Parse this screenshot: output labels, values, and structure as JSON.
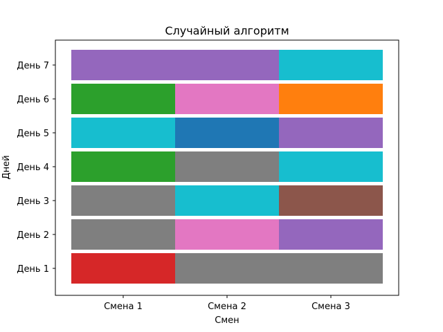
{
  "chart_data": {
    "type": "bar",
    "orientation": "horizontal",
    "stacked": true,
    "title": "Случайный алгоритм",
    "xlabel": "Смен",
    "ylabel": "Дней",
    "categories": [
      "День 1",
      "День 2",
      "День 3",
      "День 4",
      "День 5",
      "День 6",
      "День 7"
    ],
    "x_ticks": [
      "Смена 1",
      "Смена 2",
      "Смена 3"
    ],
    "xlim": [
      0,
      3
    ],
    "grid": false,
    "legend": "none",
    "rows": [
      {
        "day": "День 1",
        "segments": [
          {
            "start": 0,
            "end": 1,
            "color": "#d62728"
          },
          {
            "start": 1,
            "end": 3,
            "color": "#7f7f7f"
          }
        ]
      },
      {
        "day": "День 2",
        "segments": [
          {
            "start": 0,
            "end": 1,
            "color": "#7f7f7f"
          },
          {
            "start": 1,
            "end": 2,
            "color": "#e377c2"
          },
          {
            "start": 2,
            "end": 3,
            "color": "#9467bd"
          }
        ]
      },
      {
        "day": "День 3",
        "segments": [
          {
            "start": 0,
            "end": 1,
            "color": "#7f7f7f"
          },
          {
            "start": 1,
            "end": 2,
            "color": "#17becf"
          },
          {
            "start": 2,
            "end": 3,
            "color": "#8c564b"
          }
        ]
      },
      {
        "day": "День 4",
        "segments": [
          {
            "start": 0,
            "end": 1,
            "color": "#2ca02c"
          },
          {
            "start": 1,
            "end": 2,
            "color": "#7f7f7f"
          },
          {
            "start": 2,
            "end": 3,
            "color": "#17becf"
          }
        ]
      },
      {
        "day": "День 5",
        "segments": [
          {
            "start": 0,
            "end": 1,
            "color": "#17becf"
          },
          {
            "start": 1,
            "end": 2,
            "color": "#1f77b4"
          },
          {
            "start": 2,
            "end": 3,
            "color": "#9467bd"
          }
        ]
      },
      {
        "day": "День 6",
        "segments": [
          {
            "start": 0,
            "end": 1,
            "color": "#2ca02c"
          },
          {
            "start": 1,
            "end": 2,
            "color": "#e377c2"
          },
          {
            "start": 2,
            "end": 3,
            "color": "#ff7f0e"
          }
        ]
      },
      {
        "day": "День 7",
        "segments": [
          {
            "start": 0,
            "end": 2,
            "color": "#9467bd"
          },
          {
            "start": 2,
            "end": 3,
            "color": "#17becf"
          }
        ]
      }
    ]
  }
}
